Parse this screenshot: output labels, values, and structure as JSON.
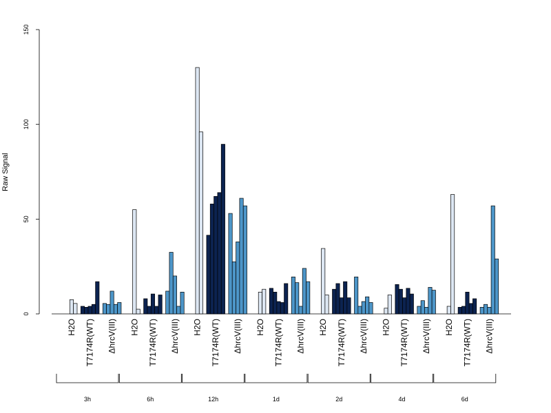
{
  "chart_data": {
    "type": "bar",
    "title": "",
    "ylabel": "Raw Signal",
    "xlabel": "",
    "ylim": [
      0,
      150
    ],
    "yticks": [
      0,
      50,
      100,
      150
    ],
    "grid": false,
    "time_points": [
      "3h",
      "6h",
      "12h",
      "1d",
      "2d",
      "4d",
      "6d"
    ],
    "treatments": [
      "H2O",
      "T7174R(WT)",
      "ΔhrcV(III)"
    ],
    "colors": {
      "H2O": "#dde7f3",
      "T7174R(WT)": "#0c2350",
      "ΔhrcV(III)": "#4d96c9"
    },
    "groups": [
      {
        "time": "3h",
        "H2O": [
          0,
          7.5,
          5.5
        ],
        "T7174R(WT)": [
          4,
          3.5,
          4,
          5,
          17
        ],
        "ΔhrcV(III)": [
          5.5,
          5,
          12,
          5,
          6
        ]
      },
      {
        "time": "6h",
        "H2O": [
          0,
          55,
          2.5
        ],
        "T7174R(WT)": [
          8,
          4,
          10.5,
          4,
          10
        ],
        "ΔhrcV(III)": [
          12,
          32.5,
          20,
          4,
          11.5
        ]
      },
      {
        "time": "12h",
        "H2O": [
          0,
          130,
          96
        ],
        "T7174R(WT)": [
          41.5,
          58,
          62,
          64,
          89.5
        ],
        "ΔhrcV(III)": [
          53,
          27.5,
          38,
          61,
          57
        ]
      },
      {
        "time": "1d",
        "H2O": [
          0,
          11.5,
          13
        ],
        "T7174R(WT)": [
          13.5,
          11.5,
          6.5,
          6,
          16
        ],
        "ΔhrcV(III)": [
          19.5,
          16.5,
          4,
          24,
          17
        ]
      },
      {
        "time": "2d",
        "H2O": [
          0,
          34.5,
          10
        ],
        "T7174R(WT)": [
          13,
          16,
          8.5,
          17,
          8.5
        ],
        "ΔhrcV(III)": [
          19.5,
          4,
          6.5,
          9,
          6
        ]
      },
      {
        "time": "4d",
        "H2O": [
          0,
          3,
          10
        ],
        "T7174R(WT)": [
          15.5,
          13,
          8.5,
          13.5,
          10.5
        ],
        "ΔhrcV(III)": [
          4,
          7,
          3.5,
          14,
          12.5
        ]
      },
      {
        "time": "6d",
        "H2O": [
          0,
          4,
          63
        ],
        "T7174R(WT)": [
          3.5,
          4,
          11.5,
          5.5,
          8
        ],
        "ΔhrcV(III)": [
          3.5,
          5,
          3.5,
          57,
          29
        ]
      }
    ]
  }
}
